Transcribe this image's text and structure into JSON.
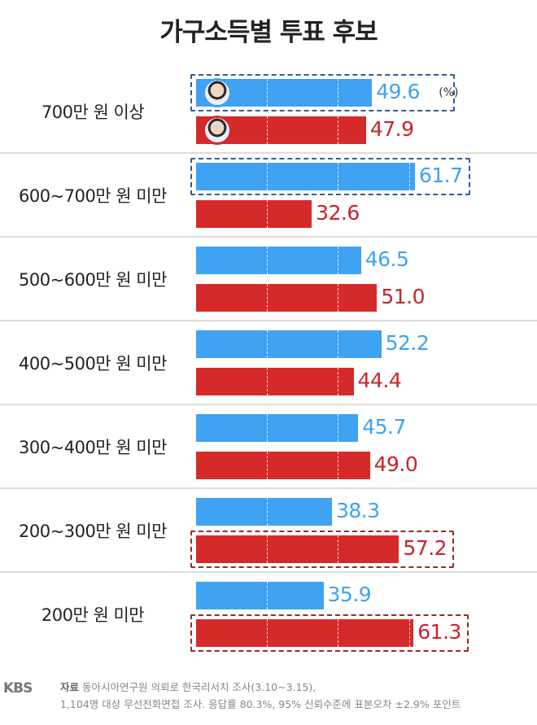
{
  "chart_data": {
    "type": "bar",
    "orientation": "horizontal",
    "title": "가구소득별 투표 후보",
    "unit_label": "(%)",
    "categories": [
      "700만 원 이상",
      "600~700만 원 미만",
      "500~600만 원 미만",
      "400~500만 원 미만",
      "300~400만 원 미만",
      "200~300만 원 미만",
      "200만 원 미만"
    ],
    "series": [
      {
        "color": "#3fa2f2",
        "values": [
          49.6,
          61.7,
          46.5,
          52.2,
          45.7,
          38.3,
          35.9
        ],
        "icon": "candidate-photo-blue"
      },
      {
        "color": "#d62a2a",
        "values": [
          47.9,
          32.6,
          51.0,
          44.4,
          49.0,
          57.2,
          61.3
        ],
        "icon": "candidate-photo-red"
      }
    ],
    "value_labels": [
      [
        "49.6",
        "61.7",
        "46.5",
        "52.2",
        "45.7",
        "38.3",
        "35.9"
      ],
      [
        "47.9",
        "32.6",
        "51.0",
        "44.4",
        "49.0",
        "57.2",
        "61.3"
      ]
    ],
    "highlighted": [
      [
        0,
        0
      ],
      [
        0,
        1
      ],
      [
        1,
        5
      ],
      [
        1,
        6
      ]
    ],
    "xlim": [
      0,
      70
    ],
    "grid": "dashed vertical"
  },
  "footer": {
    "logo": "KBS",
    "source_label": "자료",
    "source_text": "동아시아연구원 의뢰로 한국리서치 조사(3.10~3.15),",
    "note": "1,104명 대상 무선전화면접 조사. 응답률 80.3%, 95% 신뢰수준에 표본오차 ±2.9% 포인트"
  }
}
